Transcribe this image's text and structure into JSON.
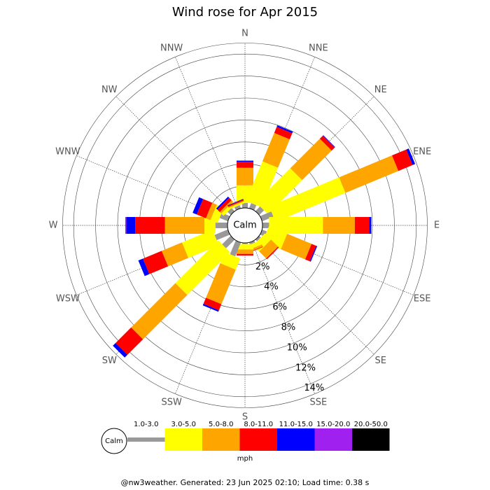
{
  "chart_data": {
    "type": "windrose",
    "title": "Wind rose for Apr 2015",
    "directions": [
      "N",
      "NNE",
      "NE",
      "ENE",
      "E",
      "ESE",
      "SE",
      "SSE",
      "S",
      "SSW",
      "SW",
      "WSW",
      "W",
      "WNW",
      "NW",
      "NNW"
    ],
    "series": [
      {
        "name": "1.0-3.0",
        "color": "#999999",
        "values": [
          0.45,
          0.5,
          0.6,
          1.1,
          0.6,
          0.45,
          0.2,
          0.2,
          0.1,
          1.35,
          1.1,
          1.3,
          1.1,
          0.8,
          0.4,
          0.3
        ]
      },
      {
        "name": "3.0-5.0",
        "color": "#ffff00",
        "values": [
          1.6,
          3.9,
          4.4,
          6.9,
          4.9,
          1.8,
          0.8,
          0.4,
          0.5,
          1.1,
          5.5,
          3.0,
          1.0,
          0.7,
          0.3,
          0.15
        ]
      },
      {
        "name": "5.0-8.0",
        "color": "#ffa500",
        "values": [
          1.6,
          2.8,
          3.8,
          5.2,
          2.9,
          2.4,
          0.9,
          0.2,
          0.4,
          3.4,
          5.7,
          2.0,
          3.6,
          0.45,
          0.2,
          0.1
        ]
      },
      {
        "name": "8.0-11.0",
        "color": "#ff0000",
        "values": [
          0.55,
          0.6,
          0.4,
          1.4,
          1.3,
          0.45,
          0.1,
          0.05,
          0.15,
          0.6,
          2.0,
          1.85,
          2.7,
          0.9,
          0.3,
          0.1
        ]
      },
      {
        "name": "11.0-15.0",
        "color": "#0000ff",
        "values": [
          0.1,
          0.15,
          0.05,
          0.25,
          0.2,
          0.1,
          0,
          0,
          0,
          0.15,
          0.35,
          0.45,
          0.8,
          0.4,
          0.15,
          0.05
        ]
      },
      {
        "name": "15.0-20.0",
        "color": "#a020f0",
        "values": [
          0,
          0,
          0,
          0,
          0,
          0,
          0,
          0,
          0,
          0,
          0,
          0,
          0.1,
          0,
          0,
          0
        ]
      },
      {
        "name": "20.0-50.0",
        "color": "#000000",
        "values": [
          0,
          0,
          0,
          0,
          0,
          0,
          0,
          0,
          0,
          0,
          0,
          0,
          0,
          0,
          0,
          0
        ]
      }
    ],
    "rlim": [
      0,
      15
    ],
    "rticks": [
      {
        "value": 2,
        "label": "2%"
      },
      {
        "value": 4,
        "label": "4%"
      },
      {
        "value": 6,
        "label": "6%"
      },
      {
        "value": 8,
        "label": "8%"
      },
      {
        "value": 10,
        "label": "10%"
      },
      {
        "value": 12,
        "label": "12%"
      },
      {
        "value": 14,
        "label": "14%"
      }
    ],
    "calm_label": "Calm",
    "unit": "mph",
    "footer": "@nw3weather. Generated: 23 Jun 2025 02:10; Load time: 0.38 s"
  }
}
